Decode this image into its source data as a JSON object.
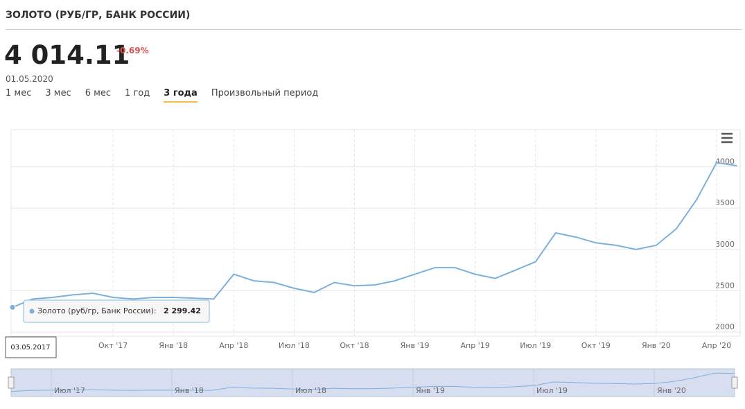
{
  "header": {
    "title": "ЗОЛОТО (РУБ/ГР, БАНК РОССИИ)",
    "price": "4 014.11",
    "change": "-0.69%",
    "date": "01.05.2020",
    "tabs": [
      "1 мес",
      "3 мес",
      "6 мес",
      "1 год",
      "3 года",
      "Произвольный период"
    ]
  },
  "chart_data": {
    "type": "line",
    "x": [
      "2017-05",
      "2017-06",
      "2017-07",
      "2017-08",
      "2017-09",
      "2017-10",
      "2017-11",
      "2017-12",
      "2018-01",
      "2018-02",
      "2018-03",
      "2018-04",
      "2018-05",
      "2018-06",
      "2018-07",
      "2018-08",
      "2018-09",
      "2018-10",
      "2018-11",
      "2018-12",
      "2019-01",
      "2019-02",
      "2019-03",
      "2019-04",
      "2019-05",
      "2019-06",
      "2019-07",
      "2019-08",
      "2019-09",
      "2019-10",
      "2019-11",
      "2019-12",
      "2020-01",
      "2020-02",
      "2020-03",
      "2020-04",
      "2020-05"
    ],
    "series": [
      {
        "name": "Золото (руб/гр, Банк России)",
        "color": "#7cb0dc",
        "values": [
          2299.42,
          2400,
          2420,
          2450,
          2470,
          2420,
          2400,
          2420,
          2420,
          2410,
          2400,
          2700,
          2620,
          2600,
          2530,
          2480,
          2600,
          2560,
          2570,
          2620,
          2700,
          2780,
          2780,
          2700,
          2650,
          2750,
          2850,
          3200,
          3150,
          3080,
          3050,
          3000,
          3050,
          3250,
          3600,
          4050,
          4014.11
        ]
      }
    ],
    "xlim": [
      "2017-05",
      "2020-05"
    ],
    "xticks": [
      {
        "value": "2017-10",
        "label": "Окт '17"
      },
      {
        "value": "2018-01",
        "label": "Янв '18"
      },
      {
        "value": "2018-04",
        "label": "Апр '18"
      },
      {
        "value": "2018-07",
        "label": "Июл '18"
      },
      {
        "value": "2018-10",
        "label": "Окт '18"
      },
      {
        "value": "2019-01",
        "label": "Янв '19"
      },
      {
        "value": "2019-04",
        "label": "Апр '19"
      },
      {
        "value": "2019-07",
        "label": "Июл '19"
      },
      {
        "value": "2019-10",
        "label": "Окт '19"
      },
      {
        "value": "2020-01",
        "label": "Янв '20"
      },
      {
        "value": "2020-04",
        "label": "Апр '20"
      }
    ],
    "ylim": [
      1950,
      4450
    ],
    "yticks": [
      2000,
      2500,
      3000,
      3500,
      4000
    ],
    "grid": true,
    "navigator_xticks": [
      {
        "value": "2017-07",
        "label": "Июл '17"
      },
      {
        "value": "2018-01",
        "label": "Янв '18"
      },
      {
        "value": "2018-07",
        "label": "Июл '18"
      },
      {
        "value": "2019-01",
        "label": "Янв '19"
      },
      {
        "value": "2019-07",
        "label": "Июл '19"
      },
      {
        "value": "2020-01",
        "label": "Янв '20"
      }
    ],
    "tooltip": {
      "label": "Золото (руб/гр, Банк России):",
      "value": "2 299.42",
      "date": "03.05.2017"
    }
  }
}
